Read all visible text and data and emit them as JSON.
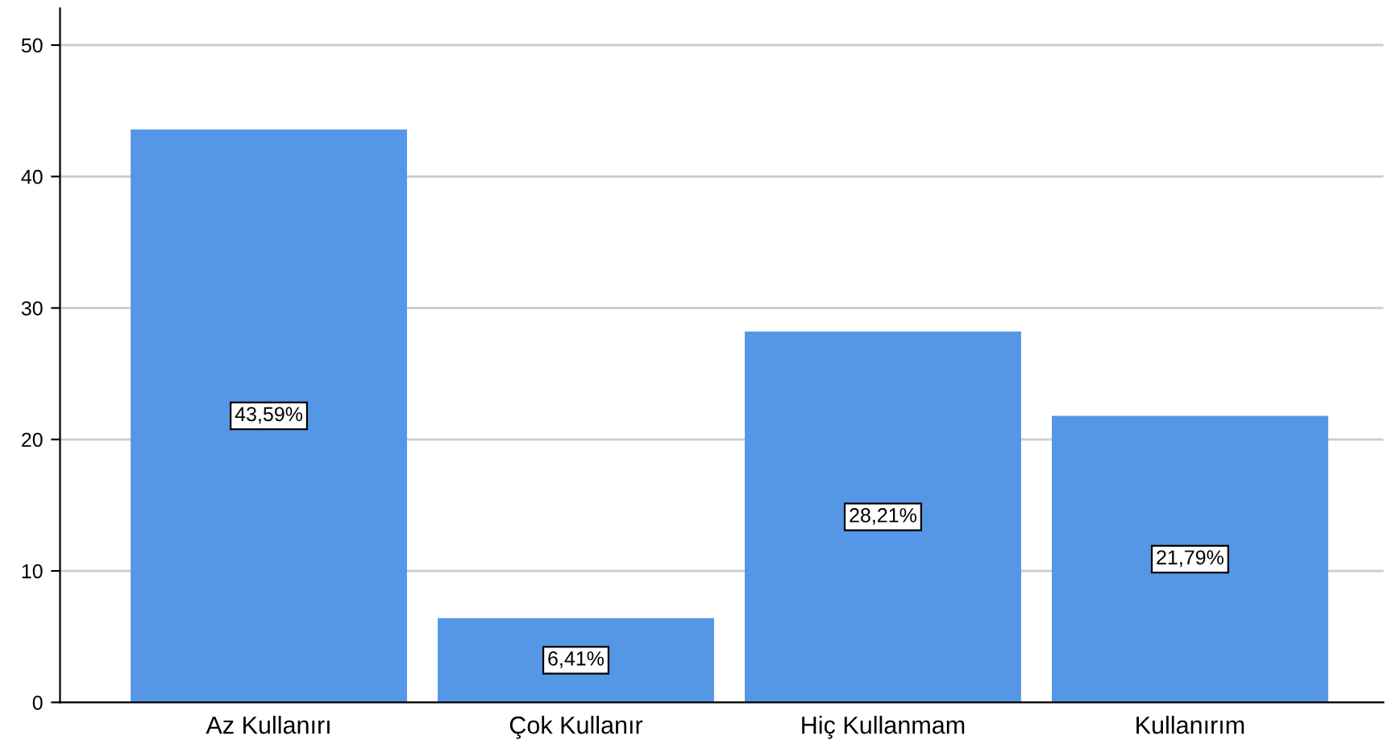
{
  "chart_data": {
    "type": "bar",
    "categories": [
      "Az Kullanırı",
      "Çok Kullanır",
      "Hiç Kullanmam",
      "Kullanırım"
    ],
    "values": [
      43.59,
      6.41,
      28.21,
      21.79
    ],
    "value_labels": [
      "43,59%",
      "6,41%",
      "28,21%",
      "21,79%"
    ],
    "color": "#5596e6",
    "ylim": [
      0,
      52.8
    ],
    "yticks": [
      0,
      10,
      20,
      30,
      40,
      50
    ],
    "grid": "y"
  }
}
